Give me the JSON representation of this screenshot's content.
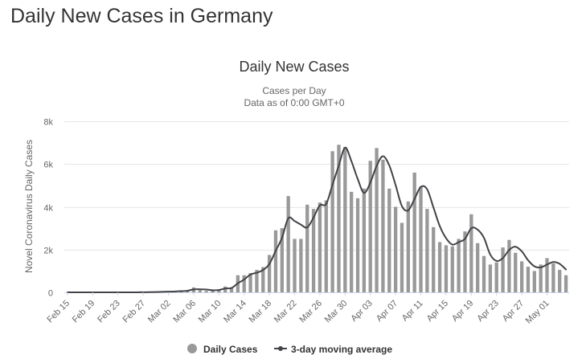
{
  "page": {
    "heading": "Daily New Cases in Germany"
  },
  "chart_data": {
    "type": "bar",
    "title": "Daily New Cases",
    "subtitle_lines": [
      "Cases per Day",
      "Data as of 0:00 GMT+0"
    ],
    "ylabel": "Novel Coronavirus Daily Cases",
    "xlabel": "",
    "ylim": [
      0,
      8000
    ],
    "yticks": [
      0,
      2000,
      4000,
      6000,
      8000
    ],
    "ytick_labels": [
      "0",
      "2k",
      "4k",
      "6k",
      "8k"
    ],
    "xtick_labels": [
      "Feb 15",
      "Feb 19",
      "Feb 23",
      "Feb 27",
      "Mar 02",
      "Mar 06",
      "Mar 10",
      "Mar 14",
      "Mar 18",
      "Mar 22",
      "Mar 26",
      "Mar 30",
      "Apr 03",
      "Apr 07",
      "Apr 11",
      "Apr 15",
      "Apr 19",
      "Apr 23",
      "Apr 27",
      "May 01"
    ],
    "grid": true,
    "legend_position": "bottom-center",
    "categories": [
      "Feb 15",
      "Feb 16",
      "Feb 17",
      "Feb 18",
      "Feb 19",
      "Feb 20",
      "Feb 21",
      "Feb 22",
      "Feb 23",
      "Feb 24",
      "Feb 25",
      "Feb 26",
      "Feb 27",
      "Feb 28",
      "Feb 29",
      "Mar 01",
      "Mar 02",
      "Mar 03",
      "Mar 04",
      "Mar 05",
      "Mar 06",
      "Mar 07",
      "Mar 08",
      "Mar 09",
      "Mar 10",
      "Mar 11",
      "Mar 12",
      "Mar 13",
      "Mar 14",
      "Mar 15",
      "Mar 16",
      "Mar 17",
      "Mar 18",
      "Mar 19",
      "Mar 20",
      "Mar 21",
      "Mar 22",
      "Mar 23",
      "Mar 24",
      "Mar 25",
      "Mar 26",
      "Mar 27",
      "Mar 28",
      "Mar 29",
      "Mar 30",
      "Mar 31",
      "Apr 01",
      "Apr 02",
      "Apr 03",
      "Apr 04",
      "Apr 05",
      "Apr 06",
      "Apr 07",
      "Apr 08",
      "Apr 09",
      "Apr 10",
      "Apr 11",
      "Apr 12",
      "Apr 13",
      "Apr 14",
      "Apr 15",
      "Apr 16",
      "Apr 17",
      "Apr 18",
      "Apr 19",
      "Apr 20",
      "Apr 21",
      "Apr 22",
      "Apr 23",
      "Apr 24",
      "Apr 25",
      "Apr 26",
      "Apr 27",
      "Apr 28",
      "Apr 29",
      "Apr 30",
      "May 01",
      "May 02",
      "May 03",
      "May 04"
    ],
    "series": [
      {
        "name": "Daily Cases",
        "kind": "bar",
        "color": "#999999",
        "values": [
          0,
          0,
          0,
          0,
          0,
          0,
          0,
          0,
          0,
          0,
          2,
          3,
          9,
          11,
          20,
          35,
          42,
          40,
          80,
          100,
          230,
          100,
          70,
          120,
          140,
          270,
          200,
          800,
          800,
          900,
          1050,
          1180,
          1750,
          2900,
          3000,
          4500,
          2500,
          2500,
          4100,
          3900,
          4200,
          4300,
          6600,
          6900,
          6800,
          4700,
          4400,
          4850,
          6150,
          6750,
          6200,
          4850,
          4000,
          3250,
          4250,
          5600,
          4950,
          3900,
          3050,
          2350,
          2200,
          2150,
          2500,
          2850,
          3650,
          2300,
          1700,
          1300,
          1400,
          2100,
          2450,
          1850,
          1450,
          1200,
          1000,
          1300,
          1600,
          1350,
          1050,
          800
        ]
      },
      {
        "name": "3-day moving average",
        "kind": "line",
        "color": "#434348",
        "values": [
          0,
          0,
          0,
          0,
          0,
          0,
          0,
          0,
          0,
          0,
          1,
          2,
          5,
          8,
          13,
          22,
          32,
          39,
          54,
          73,
          137,
          143,
          133,
          97,
          110,
          177,
          203,
          423,
          600,
          833,
          917,
          1043,
          1327,
          1943,
          2550,
          3467,
          3333,
          3167,
          3033,
          3500,
          4067,
          4133,
          5033,
          5933,
          6767,
          6133,
          5300,
          4650,
          5133,
          5917,
          6367,
          5933,
          5017,
          4033,
          3833,
          4367,
          4933,
          4817,
          3967,
          3100,
          2533,
          2233,
          2350,
          2500,
          3000,
          2933,
          2550,
          1767,
          1467,
          1600,
          1983,
          2133,
          1917,
          1500,
          1217,
          1167,
          1300,
          1417,
          1333,
          1067
        ]
      }
    ]
  }
}
